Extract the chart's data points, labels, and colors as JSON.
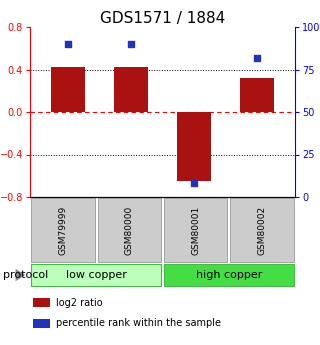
{
  "title": "GDS1571 / 1884",
  "samples": [
    "GSM79999",
    "GSM80000",
    "GSM80001",
    "GSM80002"
  ],
  "log2_ratio": [
    0.42,
    0.42,
    -0.65,
    0.32
  ],
  "percentile_rank": [
    90,
    90,
    8,
    82
  ],
  "bar_color": "#aa1111",
  "dot_color": "#2233bb",
  "ylim_left": [
    -0.8,
    0.8
  ],
  "ylim_right": [
    0,
    100
  ],
  "yticks_left": [
    -0.8,
    -0.4,
    0.0,
    0.4,
    0.8
  ],
  "yticks_right": [
    0,
    25,
    50,
    75,
    100
  ],
  "ytick_labels_right": [
    "0",
    "25",
    "50",
    "75",
    "100%"
  ],
  "groups": [
    {
      "label": "low copper",
      "indices": [
        0,
        1
      ],
      "facecolor": "#bbffbb",
      "edgecolor": "#44bb44"
    },
    {
      "label": "high copper",
      "indices": [
        2,
        3
      ],
      "facecolor": "#44dd44",
      "edgecolor": "#44bb44"
    }
  ],
  "group_row_label": "protocol",
  "legend_items": [
    {
      "color": "#aa1111",
      "label": "log2 ratio"
    },
    {
      "color": "#2233bb",
      "label": "percentile rank within the sample"
    }
  ],
  "bar_width": 0.55,
  "background_color": "#ffffff",
  "sample_box_color": "#cccccc",
  "title_fontsize": 11,
  "tick_fontsize": 7,
  "sample_fontsize": 6.5,
  "group_fontsize": 8,
  "legend_fontsize": 7
}
